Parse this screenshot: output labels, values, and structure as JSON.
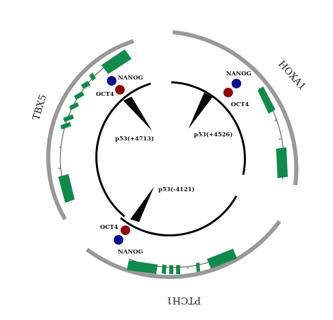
{
  "genes": [
    {
      "id": "tbx5",
      "label": "TBX5"
    },
    {
      "id": "hoxa1",
      "label": "HOXA1"
    },
    {
      "id": "ptch1",
      "label": "PTCH1"
    }
  ],
  "binding_sites": [
    {
      "id": "p53-4713",
      "label": "p53(+4713)"
    },
    {
      "id": "p53-4526",
      "label": "p53(+4526)"
    },
    {
      "id": "p53-m4121",
      "label": "p53(-4121)"
    }
  ],
  "factors": {
    "nanog": {
      "label": "NANOG",
      "color": "#0b0f8c"
    },
    "oct4": {
      "label": "OCT4",
      "color": "#8b0a0a"
    }
  },
  "colors": {
    "outer_ring": "#999999",
    "exon": "#118a4c",
    "inner_ring": "#000000"
  }
}
